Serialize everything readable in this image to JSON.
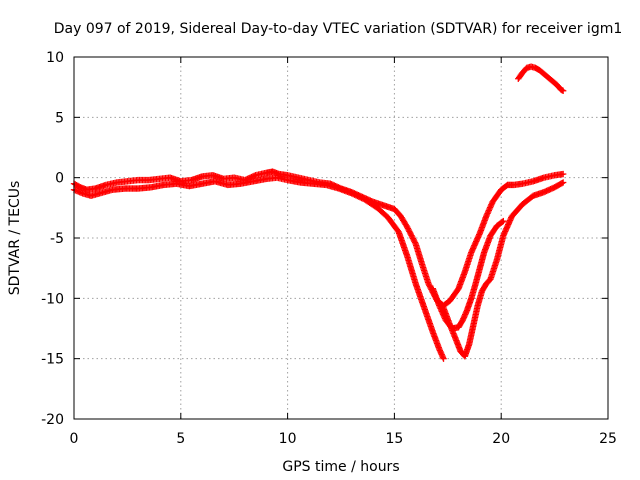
{
  "chart_data": {
    "type": "scatter",
    "title": "Day 097 of 2019, Sidereal Day-to-day VTEC variation (SDTVAR) for receiver igm1",
    "xlabel": "GPS time / hours",
    "ylabel": "SDTVAR / TECUs",
    "xlim": [
      0,
      25
    ],
    "ylim": [
      -20,
      10
    ],
    "x_ticks": [
      0,
      5,
      10,
      15,
      20,
      25
    ],
    "x_tick_labels": [
      "0",
      "5",
      "10",
      "15",
      "20",
      "25"
    ],
    "y_ticks": [
      -20,
      -15,
      -10,
      -5,
      0,
      5,
      10
    ],
    "y_tick_labels": [
      "-20",
      "-15",
      "-10",
      "-5",
      "0",
      "5",
      "10"
    ],
    "grid": true,
    "marker": "plus",
    "color": "#ff0000",
    "series": [
      {
        "name": "satellite-track-a",
        "x": [
          0.0,
          0.3,
          0.6,
          1.0,
          1.5,
          2.0,
          2.5,
          3.0,
          3.5,
          4.0,
          4.5,
          5.0,
          5.5,
          6.0,
          6.5,
          7.0,
          7.5,
          8.0,
          8.5,
          9.0,
          9.3,
          9.6,
          10.0,
          10.5,
          11.0,
          11.5,
          12.0,
          12.5,
          13.0,
          13.5,
          14.0,
          14.5,
          15.0,
          15.3,
          15.6,
          16.0,
          16.3,
          16.6,
          17.0,
          17.3,
          17.6,
          18.0,
          18.3,
          18.6,
          19.0,
          19.3,
          19.6,
          20.0,
          20.3,
          20.6,
          21.0,
          21.5,
          22.0,
          22.5,
          22.9
        ],
        "y": [
          -0.5,
          -0.8,
          -1.0,
          -0.9,
          -0.6,
          -0.4,
          -0.3,
          -0.2,
          -0.2,
          -0.1,
          0.0,
          -0.3,
          -0.2,
          0.1,
          0.2,
          -0.1,
          0.0,
          -0.2,
          0.2,
          0.4,
          0.5,
          0.3,
          0.2,
          0.0,
          -0.2,
          -0.4,
          -0.5,
          -0.9,
          -1.2,
          -1.6,
          -2.0,
          -2.3,
          -2.6,
          -3.2,
          -4.1,
          -5.5,
          -7.2,
          -8.8,
          -10.2,
          -10.6,
          -10.2,
          -9.2,
          -7.8,
          -6.2,
          -4.6,
          -3.2,
          -2.0,
          -1.0,
          -0.6,
          -0.6,
          -0.5,
          -0.3,
          0.0,
          0.2,
          0.3
        ]
      },
      {
        "name": "satellite-track-b",
        "x": [
          0.0,
          0.4,
          0.8,
          1.2,
          1.8,
          2.4,
          3.0,
          3.6,
          4.2,
          4.8,
          5.4,
          6.0,
          6.6,
          7.2,
          7.8,
          8.4,
          9.0,
          9.5,
          10.0,
          10.6,
          11.2,
          11.8,
          12.4,
          13.0,
          13.6,
          14.2,
          14.7,
          15.2,
          15.6,
          16.0,
          16.4,
          16.8,
          17.1,
          17.3
        ],
        "y": [
          -1.0,
          -1.3,
          -1.5,
          -1.3,
          -1.0,
          -0.9,
          -0.9,
          -0.8,
          -0.6,
          -0.5,
          -0.7,
          -0.5,
          -0.3,
          -0.6,
          -0.5,
          -0.3,
          -0.1,
          0.0,
          -0.2,
          -0.4,
          -0.5,
          -0.6,
          -0.9,
          -1.3,
          -1.8,
          -2.5,
          -3.3,
          -4.5,
          -6.5,
          -8.8,
          -10.8,
          -12.8,
          -14.2,
          -15.0
        ]
      },
      {
        "name": "satellite-track-c",
        "x": [
          16.8,
          17.1,
          17.4,
          17.7,
          18.0,
          18.2,
          18.4,
          18.6,
          18.8,
          19.0,
          19.2,
          19.5,
          19.8,
          20.1
        ],
        "y": [
          -9.2,
          -10.6,
          -11.8,
          -12.5,
          -12.4,
          -11.8,
          -11.0,
          -10.0,
          -8.8,
          -7.5,
          -6.2,
          -4.8,
          -4.0,
          -3.6
        ]
      },
      {
        "name": "satellite-track-d",
        "x": [
          17.3,
          17.6,
          17.9,
          18.1,
          18.3,
          18.5,
          18.7,
          18.9,
          19.1,
          19.3,
          19.5,
          19.8,
          20.1,
          20.5,
          21.0,
          21.5,
          22.0,
          22.5,
          22.9
        ],
        "y": [
          -10.8,
          -12.2,
          -13.5,
          -14.4,
          -14.8,
          -13.8,
          -12.2,
          -10.6,
          -9.4,
          -8.8,
          -8.4,
          -6.8,
          -4.8,
          -3.2,
          -2.2,
          -1.5,
          -1.2,
          -0.8,
          -0.4
        ]
      },
      {
        "name": "satellite-track-e",
        "x": [
          20.8,
          21.0,
          21.2,
          21.4,
          21.6,
          21.8,
          22.0,
          22.2,
          22.4,
          22.6,
          22.8,
          22.9
        ],
        "y": [
          8.2,
          8.7,
          9.1,
          9.2,
          9.1,
          8.9,
          8.6,
          8.3,
          8.0,
          7.7,
          7.3,
          7.2
        ]
      }
    ]
  }
}
